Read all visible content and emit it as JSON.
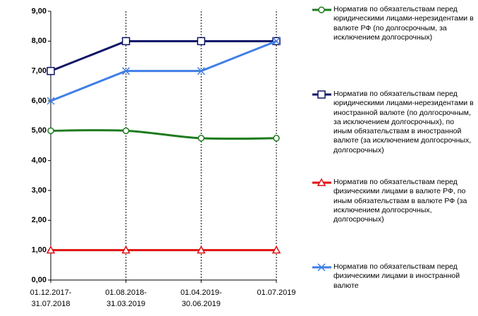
{
  "chart_data": {
    "type": "line",
    "categories": [
      "01.12.2017-\n31.07.2018",
      "01.08.2018-\n31.03.2019",
      "01.04.2019-\n30.06.2019",
      "01.07.2019"
    ],
    "ylim": [
      0,
      9
    ],
    "yticks": [
      {
        "value": 0,
        "label": "0,00"
      },
      {
        "value": 1,
        "label": "1,00"
      },
      {
        "value": 2,
        "label": "2,00"
      },
      {
        "value": 3,
        "label": "3,00"
      },
      {
        "value": 4,
        "label": "4,00"
      },
      {
        "value": 5,
        "label": "5,00"
      },
      {
        "value": 6,
        "label": "6,00"
      },
      {
        "value": 7,
        "label": "7,00"
      },
      {
        "value": 8,
        "label": "8,00"
      },
      {
        "value": 9,
        "label": "9,00"
      }
    ],
    "series": [
      {
        "name": "Норматив по обязательствам перед юридическими лицами-нерезидентами в валюте РФ (по долгосрочным, за исключением долгосрочных)",
        "color": "#1e7b1e",
        "marker": "circle",
        "smooth": true,
        "values": [
          5.0,
          5.0,
          4.75,
          4.75
        ]
      },
      {
        "name": "Норматив по обязательствам перед юридическими лицами-нерезидентами в иностранной валюте (по долгосрочным, за исключением долгосрочных), по иным обязательствам в иностранной валюте (за исключением долгосрочных, долгосрочных)",
        "color": "#0f1466",
        "marker": "square",
        "smooth": false,
        "values": [
          7,
          8,
          8,
          8
        ]
      },
      {
        "name": "Норматив по обязательствам перед физическими лицами в валюте РФ, по иным обязательствам в валюте РФ (за исключением долгосрочных, долгосрочных)",
        "color": "#e01010",
        "marker": "triangle",
        "smooth": false,
        "values": [
          1,
          1,
          1,
          1
        ]
      },
      {
        "name": "Норматив по обязательствам перед физическими лицами в иностранной валюте",
        "color": "#3f7fe6",
        "marker": "x",
        "smooth": false,
        "values": [
          6,
          7,
          7,
          8
        ]
      }
    ]
  }
}
